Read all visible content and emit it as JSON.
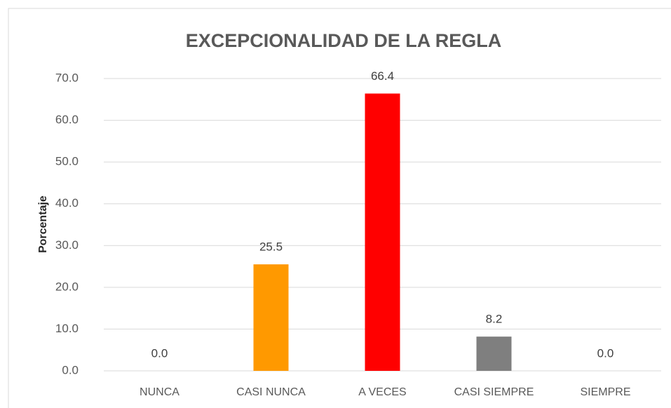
{
  "chart_data": {
    "type": "bar",
    "title": "EXCEPCIONALIDAD DE LA REGLA",
    "y_label": "Porcentaje",
    "categories": [
      "NUNCA",
      "CASI NUNCA",
      "A VECES",
      "CASI SIEMPRE",
      "SIEMPRE"
    ],
    "values": [
      0,
      25.5,
      66.4,
      8.2,
      0
    ],
    "value_labels": [
      "0.0",
      "25.5",
      "66.4",
      "8.2",
      "0.0"
    ],
    "colors": [
      "#4472c4",
      "#ff9900",
      "#ff0000",
      "#7f7f7f",
      "#ffc000"
    ],
    "ylim": [
      0,
      70
    ],
    "yticks": [
      {
        "value": 0,
        "label": "0.0"
      },
      {
        "value": 10,
        "label": "10.0"
      },
      {
        "value": 20,
        "label": "20.0"
      },
      {
        "value": 30,
        "label": "30.0"
      },
      {
        "value": 40,
        "label": "40.0"
      },
      {
        "value": 50,
        "label": "50.0"
      },
      {
        "value": 60,
        "label": "60.0"
      },
      {
        "value": 70,
        "label": "70.0"
      }
    ],
    "grid": true
  }
}
